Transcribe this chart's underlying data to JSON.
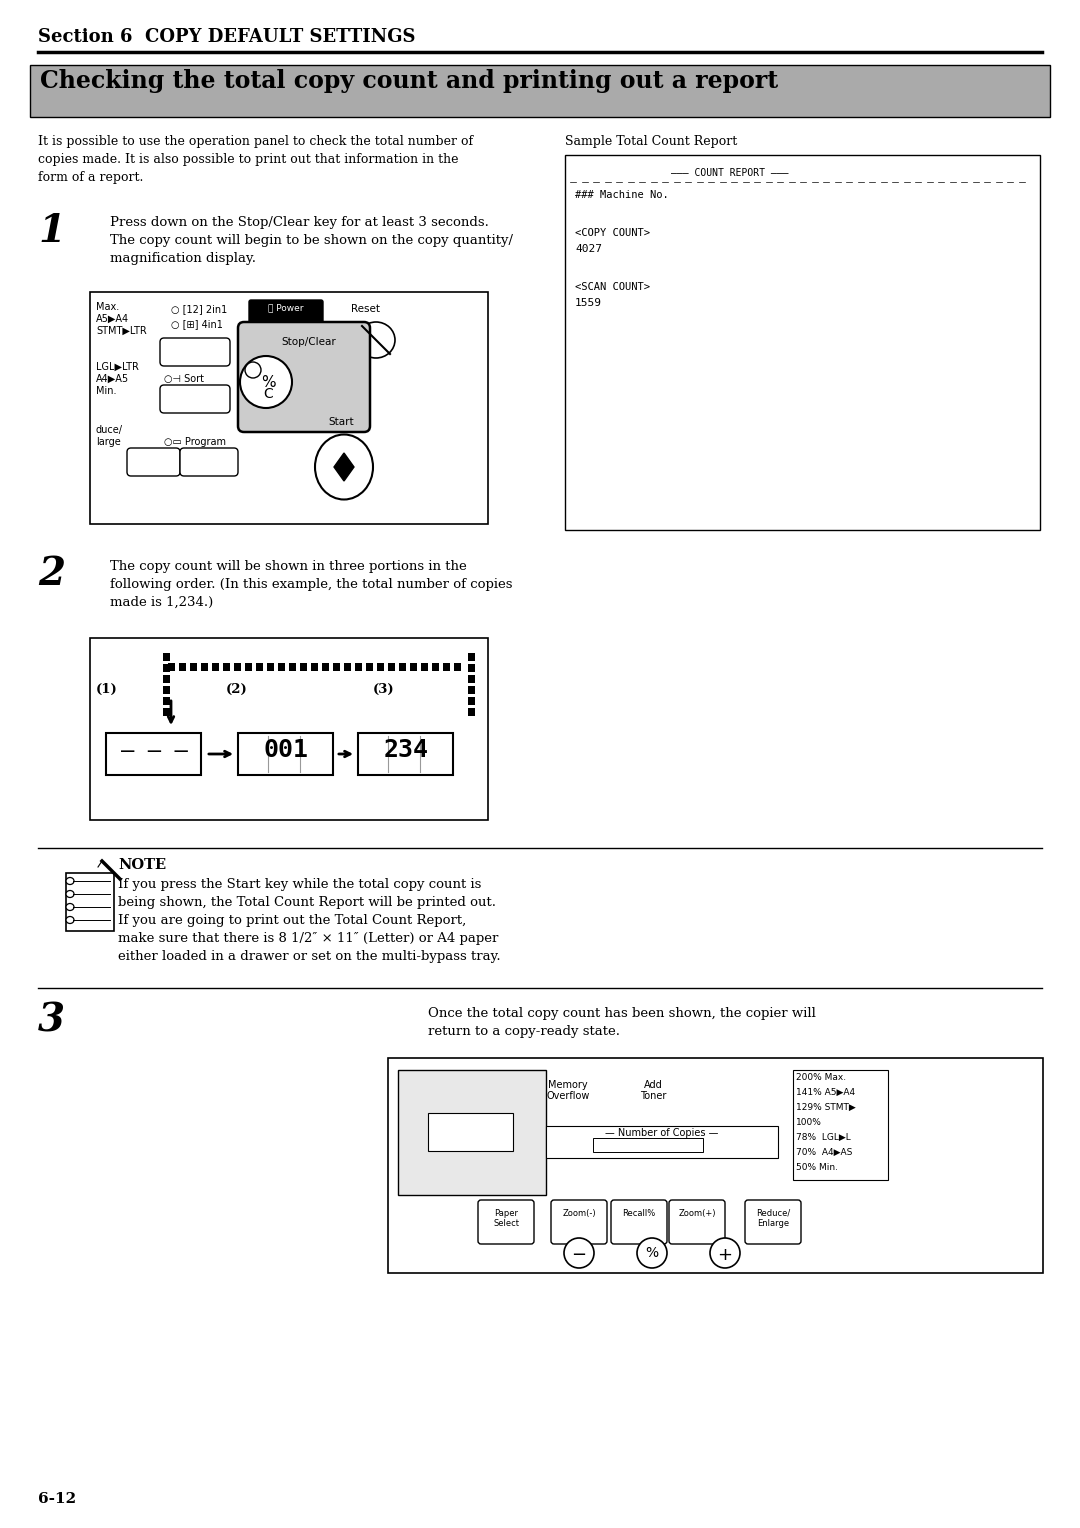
{
  "page_bg": "#ffffff",
  "section_title": "Section 6  COPY DEFAULT SETTINGS",
  "heading": "Checking the total copy count and printing out a report",
  "heading_bg": "#aaaaaa",
  "intro_text": "It is possible to use the operation panel to check the total number of\ncopies made. It is also possible to print out that information in the\nform of a report.",
  "sample_label": "Sample Total Count Report",
  "step1_num": "1",
  "step1_text": "Press down on the Stop/Clear key for at least 3 seconds.\nThe copy count will begin to be shown on the copy quantity/\nmagnification display.",
  "step2_num": "2",
  "step2_text": "The copy count will be shown in three portions in the\nfollowing order. (In this example, the total number of copies\nmade is 1,234.)",
  "step3_num": "3",
  "step3_text": "Once the total copy count has been shown, the copier will\nreturn to a copy-ready state.",
  "note_title": "NOTE",
  "note_text": "If you press the Start key while the total copy count is\nbeing shown, the Total Count Report will be printed out.\nIf you are going to print out the Total Count Report,\nmake sure that there is 8 1/2″ × 11″ (Letter) or A4 paper\neither loaded in a drawer or set on the multi-bypass tray.",
  "page_number": "6-12"
}
